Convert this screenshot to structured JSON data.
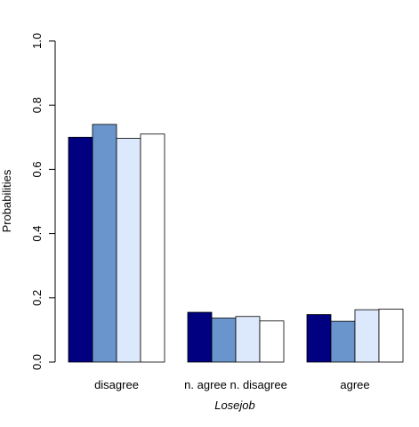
{
  "chart_data": {
    "type": "bar",
    "title": "",
    "xlabel": "Losejob",
    "ylabel": "Probabilities",
    "ylim": [
      0,
      1
    ],
    "yticks": [
      "0.0",
      "0.2",
      "0.4",
      "0.6",
      "0.8",
      "1.0"
    ],
    "categories": [
      "disagree",
      "n. agree n. disagree",
      "agree"
    ],
    "series": [
      {
        "values": [
          0.7,
          0.155,
          0.148
        ],
        "color": "#000080"
      },
      {
        "values": [
          0.74,
          0.137,
          0.127
        ],
        "color": "#6A95CC"
      },
      {
        "values": [
          0.697,
          0.142,
          0.163
        ],
        "color": "#DCE8FB"
      },
      {
        "values": [
          0.71,
          0.128,
          0.165
        ],
        "color": "#FFFFFF"
      }
    ],
    "grid": false,
    "legend": "none"
  }
}
